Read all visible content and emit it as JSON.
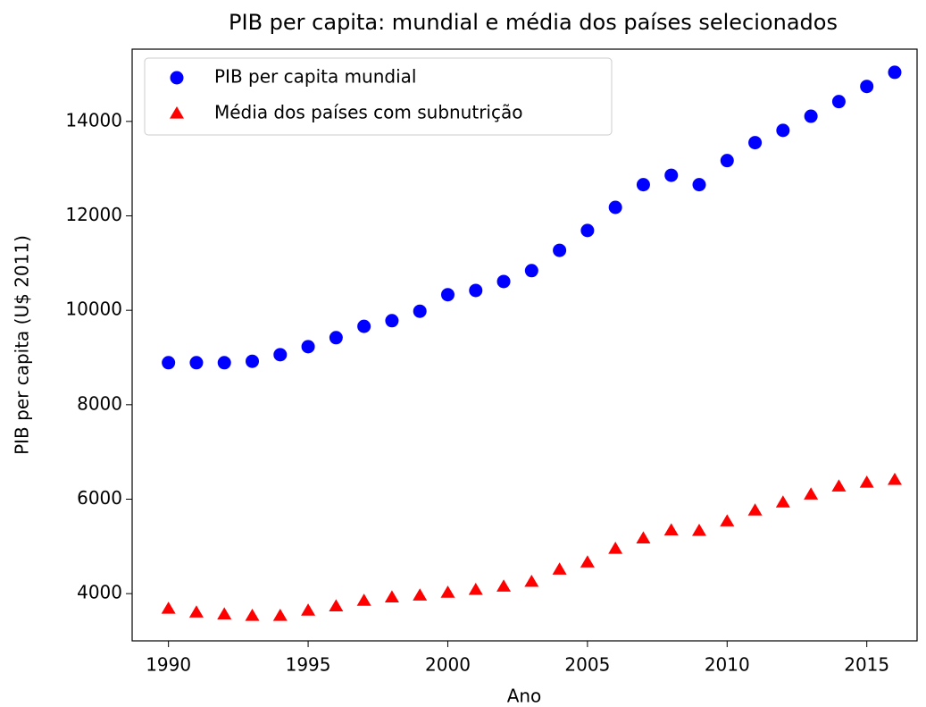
{
  "chart_data": {
    "type": "scatter",
    "title": "PIB per capita: mundial e média dos países selecionados",
    "x_label": "Ano",
    "y_label": "PIB per capita (U$ 2011)",
    "x": [
      1990,
      1991,
      1992,
      1993,
      1994,
      1995,
      1996,
      1997,
      1998,
      1999,
      2000,
      2001,
      2002,
      2003,
      2004,
      2005,
      2006,
      2007,
      2008,
      2009,
      2010,
      2011,
      2012,
      2013,
      2014,
      2015,
      2016
    ],
    "series": [
      {
        "name": "PIB per capita mundial",
        "color": "#0000ff",
        "marker": "circle",
        "values": [
          8890,
          8890,
          8890,
          8920,
          9060,
          9230,
          9420,
          9660,
          9780,
          9980,
          10330,
          10420,
          10610,
          10840,
          11270,
          11690,
          12180,
          12660,
          12860,
          12660,
          13170,
          13550,
          13810,
          14110,
          14420,
          14740,
          15040
        ]
      },
      {
        "name": "Média dos países com subnutrição",
        "color": "#ff0000",
        "marker": "triangle",
        "values": [
          3680,
          3600,
          3560,
          3530,
          3530,
          3640,
          3730,
          3850,
          3920,
          3960,
          4020,
          4080,
          4150,
          4250,
          4510,
          4660,
          4950,
          5170,
          5340,
          5330,
          5530,
          5760,
          5930,
          6100,
          6270,
          6350,
          6410
        ]
      }
    ],
    "xlim": [
      1988.7,
      2016.8
    ],
    "xticks": [
      1990,
      1995,
      2000,
      2005,
      2010,
      2015
    ],
    "ylim": [
      3000,
      15530
    ],
    "yticks": [
      4000,
      6000,
      8000,
      10000,
      12000,
      14000
    ],
    "grid": false,
    "legend": "upper left"
  }
}
